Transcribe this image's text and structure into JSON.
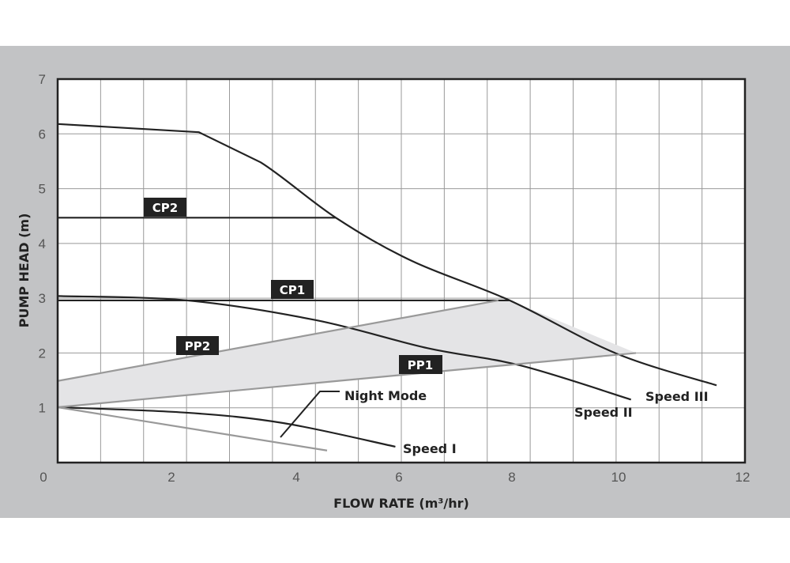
{
  "chart_data": {
    "type": "line",
    "xlabel": "FLOW RATE (m³/hr)",
    "ylabel": "PUMP HEAD (m)",
    "xlim": [
      0,
      12
    ],
    "ylim": [
      0,
      7
    ],
    "xticks": [
      0,
      2,
      4,
      6,
      8,
      10,
      12
    ],
    "yticks": [
      1,
      2,
      3,
      4,
      5,
      6,
      7
    ],
    "grid": true,
    "series": [
      {
        "name": "Speed III",
        "color": "#222222",
        "points": [
          [
            0,
            6.18
          ],
          [
            2.44,
            6.03
          ],
          [
            3.43,
            5.48
          ],
          [
            4.77,
            4.47
          ],
          [
            6.23,
            3.68
          ],
          [
            7.96,
            2.96
          ],
          [
            9.96,
            1.99
          ],
          [
            11.58,
            1.41
          ]
        ]
      },
      {
        "name": "Speed II",
        "color": "#222222",
        "points": [
          [
            0,
            3.04
          ],
          [
            2.25,
            2.96
          ],
          [
            4.38,
            2.6
          ],
          [
            6.5,
            2.09
          ],
          [
            8.17,
            1.77
          ],
          [
            10.2,
            1.15
          ]
        ]
      },
      {
        "name": "Speed I",
        "color": "#222222",
        "points": [
          [
            0,
            1.01
          ],
          [
            2.25,
            0.91
          ],
          [
            3.8,
            0.72
          ],
          [
            5.93,
            0.29
          ]
        ]
      },
      {
        "name": "Night Mode",
        "color": "#999999",
        "points": [
          [
            0,
            1.01
          ],
          [
            4.6,
            0.22
          ]
        ]
      },
      {
        "name": "CP2",
        "color": "#222222",
        "points": [
          [
            0,
            4.47
          ],
          [
            4.77,
            4.47
          ]
        ]
      },
      {
        "name": "CP1",
        "color": "#222222",
        "points": [
          [
            0,
            2.96
          ],
          [
            7.96,
            2.96
          ]
        ]
      },
      {
        "name": "PP2",
        "color": "#999999",
        "points": [
          [
            0,
            1.49
          ],
          [
            7.76,
            2.96
          ]
        ]
      },
      {
        "name": "PP1",
        "color": "#999999",
        "points": [
          [
            0,
            1.01
          ],
          [
            10.28,
            2.0
          ]
        ]
      }
    ],
    "shaded_region": {
      "color": "#e4e4e6",
      "points": [
        [
          0,
          1.49
        ],
        [
          7.76,
          2.96
        ],
        [
          7.96,
          2.96
        ],
        [
          10.28,
          2.0
        ],
        [
          0,
          1.01
        ]
      ]
    }
  }
}
